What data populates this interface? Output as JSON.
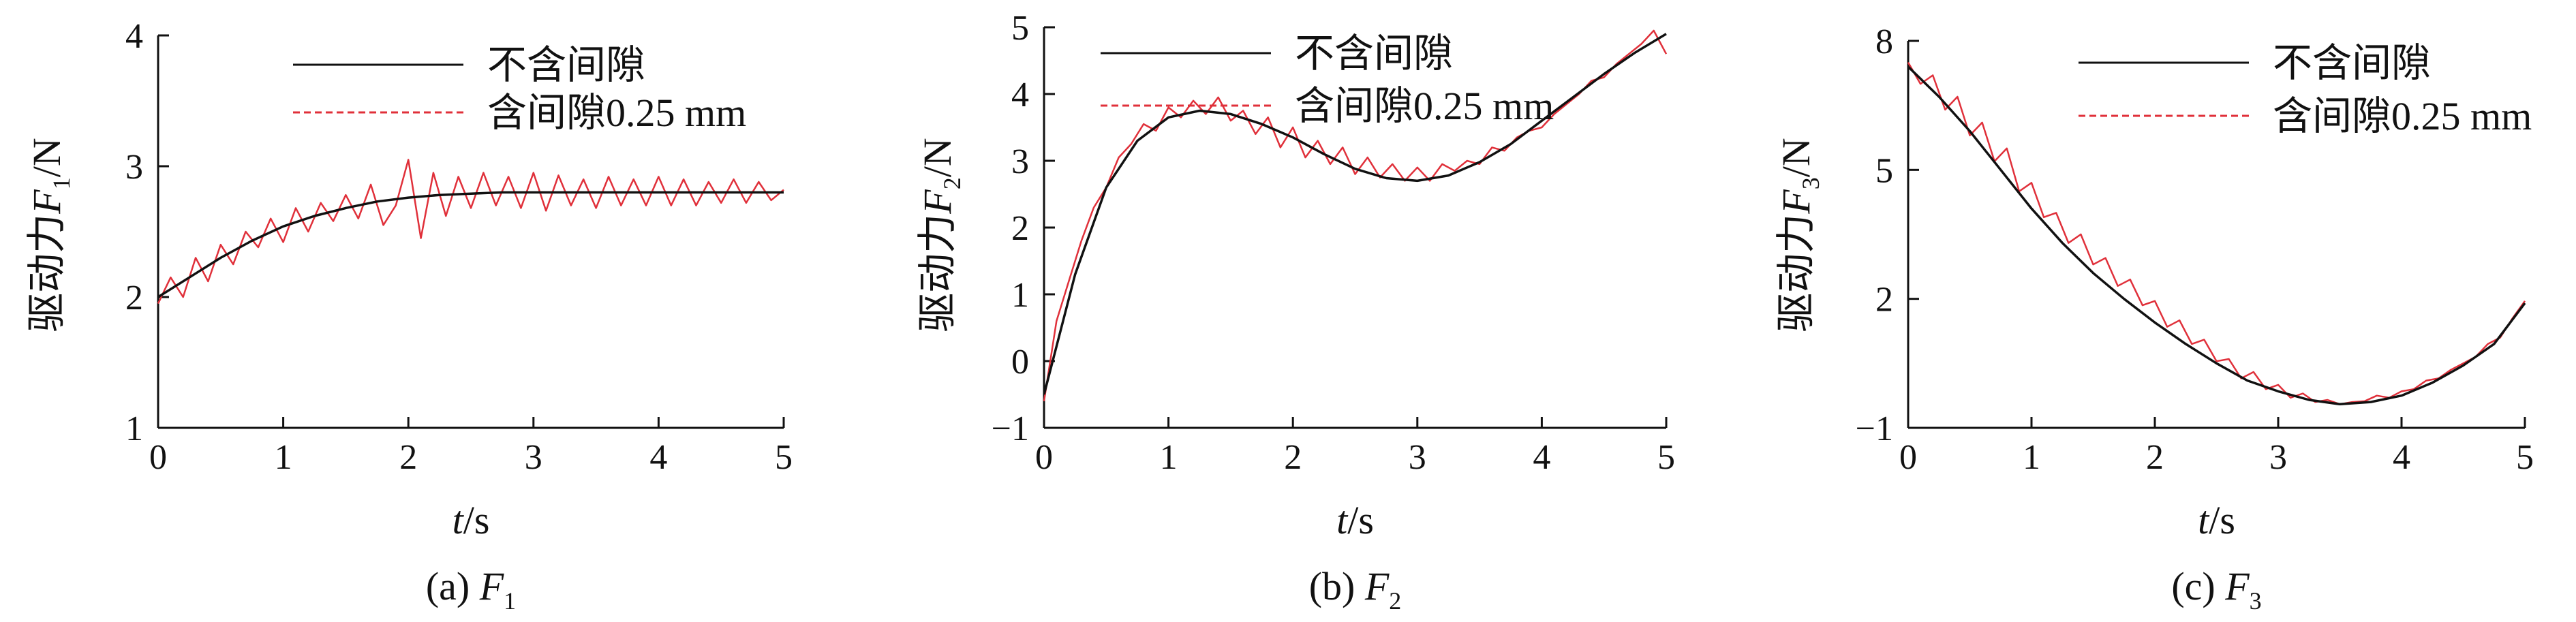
{
  "colors": {
    "no_clearance": "#111111",
    "clearance": "#e0303a",
    "axis": "#111111"
  },
  "legend": {
    "no_clearance_label": "不含间隙",
    "clearance_label": "含间隙0.25 mm"
  },
  "chart_data": [
    {
      "type": "line",
      "caption": {
        "prefix": "(a) ",
        "var": "F",
        "sub": "1"
      },
      "ylabel": {
        "prefix": "驱动力",
        "var": "F",
        "sub": "1",
        "suffix": "/N"
      },
      "xlabel": {
        "var": "t",
        "suffix": "/s"
      },
      "xlim": [
        0,
        5
      ],
      "ylim": [
        1,
        4
      ],
      "xticks": [
        "0",
        "1",
        "2",
        "3",
        "4",
        "5"
      ],
      "yticks": [
        "1",
        "2",
        "3",
        "4"
      ],
      "ytick_values": [
        1,
        2,
        3,
        4
      ],
      "series": [
        {
          "name": "不含间隙",
          "x": [
            0,
            0.25,
            0.5,
            0.75,
            1,
            1.25,
            1.5,
            1.75,
            2,
            2.25,
            2.5,
            2.75,
            3,
            3.25,
            3.5,
            3.75,
            4,
            4.25,
            4.5,
            4.75,
            5
          ],
          "y": [
            2.0,
            2.15,
            2.3,
            2.43,
            2.54,
            2.62,
            2.68,
            2.73,
            2.76,
            2.78,
            2.79,
            2.8,
            2.8,
            2.8,
            2.8,
            2.8,
            2.8,
            2.8,
            2.8,
            2.8,
            2.8
          ]
        },
        {
          "name": "含间隙0.25 mm",
          "x": [
            0,
            0.1,
            0.2,
            0.3,
            0.4,
            0.5,
            0.6,
            0.7,
            0.8,
            0.9,
            1.0,
            1.1,
            1.2,
            1.3,
            1.4,
            1.5,
            1.6,
            1.7,
            1.8,
            1.9,
            2.0,
            2.1,
            2.2,
            2.3,
            2.4,
            2.5,
            2.6,
            2.7,
            2.8,
            2.9,
            3.0,
            3.1,
            3.2,
            3.3,
            3.4,
            3.5,
            3.6,
            3.7,
            3.8,
            3.9,
            4.0,
            4.1,
            4.2,
            4.3,
            4.4,
            4.5,
            4.6,
            4.7,
            4.8,
            4.9,
            5.0
          ],
          "y": [
            1.95,
            2.15,
            2.0,
            2.3,
            2.12,
            2.4,
            2.25,
            2.5,
            2.38,
            2.6,
            2.42,
            2.68,
            2.5,
            2.72,
            2.58,
            2.78,
            2.6,
            2.86,
            2.55,
            2.7,
            3.05,
            2.45,
            2.95,
            2.62,
            2.92,
            2.68,
            2.95,
            2.7,
            2.92,
            2.68,
            2.95,
            2.66,
            2.93,
            2.7,
            2.9,
            2.68,
            2.92,
            2.7,
            2.9,
            2.7,
            2.92,
            2.7,
            2.9,
            2.7,
            2.88,
            2.72,
            2.9,
            2.72,
            2.88,
            2.74,
            2.82
          ]
        }
      ]
    },
    {
      "type": "line",
      "caption": {
        "prefix": "(b) ",
        "var": "F",
        "sub": "2"
      },
      "ylabel": {
        "prefix": "驱动力",
        "var": "F",
        "sub": "2",
        "suffix": "/N"
      },
      "xlabel": {
        "var": "t",
        "suffix": "/s"
      },
      "xlim": [
        0,
        5
      ],
      "ylim": [
        -1,
        5
      ],
      "xticks": [
        "0",
        "1",
        "2",
        "3",
        "4",
        "5"
      ],
      "yticks": [
        "−1",
        "0",
        "1",
        "2",
        "3",
        "4",
        "5"
      ],
      "ytick_values": [
        -1,
        0,
        1,
        2,
        3,
        4,
        5
      ],
      "series": [
        {
          "name": "不含间隙",
          "x": [
            0,
            0.25,
            0.5,
            0.75,
            1,
            1.25,
            1.5,
            1.75,
            2,
            2.25,
            2.5,
            2.75,
            3,
            3.25,
            3.5,
            3.75,
            4,
            4.25,
            4.5,
            4.75,
            5
          ],
          "y": [
            -0.5,
            1.3,
            2.6,
            3.3,
            3.65,
            3.75,
            3.7,
            3.55,
            3.35,
            3.1,
            2.88,
            2.74,
            2.7,
            2.78,
            2.98,
            3.25,
            3.6,
            3.95,
            4.3,
            4.62,
            4.9
          ]
        },
        {
          "name": "含间隙0.25 mm",
          "x": [
            0,
            0.1,
            0.2,
            0.3,
            0.4,
            0.5,
            0.6,
            0.7,
            0.8,
            0.9,
            1.0,
            1.1,
            1.2,
            1.3,
            1.4,
            1.5,
            1.6,
            1.7,
            1.8,
            1.9,
            2.0,
            2.1,
            2.2,
            2.3,
            2.4,
            2.5,
            2.6,
            2.7,
            2.8,
            2.9,
            3.0,
            3.1,
            3.2,
            3.3,
            3.4,
            3.5,
            3.6,
            3.7,
            3.8,
            3.9,
            4.0,
            4.1,
            4.2,
            4.3,
            4.4,
            4.5,
            4.6,
            4.7,
            4.8,
            4.9,
            5.0
          ],
          "y": [
            -0.6,
            0.6,
            1.2,
            1.8,
            2.3,
            2.6,
            3.05,
            3.25,
            3.55,
            3.45,
            3.8,
            3.65,
            3.9,
            3.7,
            3.95,
            3.6,
            3.75,
            3.4,
            3.65,
            3.2,
            3.5,
            3.05,
            3.3,
            2.95,
            3.2,
            2.8,
            3.05,
            2.75,
            2.95,
            2.7,
            2.9,
            2.7,
            2.95,
            2.85,
            3.0,
            2.95,
            3.2,
            3.15,
            3.35,
            3.45,
            3.5,
            3.7,
            3.85,
            4.0,
            4.2,
            4.25,
            4.45,
            4.6,
            4.75,
            4.95,
            4.6
          ]
        }
      ]
    },
    {
      "type": "line",
      "caption": {
        "prefix": "(c) ",
        "var": "F",
        "sub": "3"
      },
      "ylabel": {
        "prefix": "驱动力",
        "var": "F",
        "sub": "3",
        "suffix": "/N"
      },
      "xlabel": {
        "var": "t",
        "suffix": "/s"
      },
      "xlim": [
        0,
        5
      ],
      "ylim": [
        -1,
        8
      ],
      "xticks": [
        "0",
        "1",
        "2",
        "3",
        "4",
        "5"
      ],
      "yticks": [
        "−1",
        "2",
        "5",
        "8"
      ],
      "ytick_values": [
        -1,
        2,
        5,
        8
      ],
      "series": [
        {
          "name": "不含间隙",
          "x": [
            0,
            0.25,
            0.5,
            0.75,
            1,
            1.25,
            1.5,
            1.75,
            2,
            2.25,
            2.5,
            2.75,
            3,
            3.25,
            3.5,
            3.75,
            4,
            4.25,
            4.5,
            4.75,
            5
          ],
          "y": [
            7.4,
            6.7,
            5.9,
            5.0,
            4.1,
            3.3,
            2.6,
            2.0,
            1.45,
            0.95,
            0.5,
            0.1,
            -0.15,
            -0.35,
            -0.45,
            -0.4,
            -0.25,
            0.05,
            0.45,
            0.95,
            1.9
          ]
        },
        {
          "name": "含间隙0.25 mm",
          "x": [
            0,
            0.1,
            0.2,
            0.3,
            0.4,
            0.5,
            0.6,
            0.7,
            0.8,
            0.9,
            1.0,
            1.1,
            1.2,
            1.3,
            1.4,
            1.5,
            1.6,
            1.7,
            1.8,
            1.9,
            2.0,
            2.1,
            2.2,
            2.3,
            2.4,
            2.5,
            2.6,
            2.7,
            2.8,
            2.9,
            3.0,
            3.1,
            3.2,
            3.3,
            3.4,
            3.5,
            3.6,
            3.7,
            3.8,
            3.9,
            4.0,
            4.1,
            4.2,
            4.3,
            4.4,
            4.5,
            4.6,
            4.7,
            4.8,
            4.9,
            5.0
          ],
          "y": [
            7.5,
            7.0,
            7.2,
            6.4,
            6.7,
            5.8,
            6.1,
            5.2,
            5.5,
            4.5,
            4.7,
            3.9,
            4.0,
            3.3,
            3.5,
            2.8,
            2.95,
            2.3,
            2.45,
            1.85,
            1.95,
            1.35,
            1.5,
            0.95,
            1.05,
            0.55,
            0.6,
            0.15,
            0.3,
            -0.1,
            0.0,
            -0.3,
            -0.2,
            -0.4,
            -0.35,
            -0.45,
            -0.4,
            -0.38,
            -0.25,
            -0.3,
            -0.15,
            -0.1,
            0.1,
            0.15,
            0.35,
            0.5,
            0.65,
            0.95,
            1.1,
            1.55,
            1.95
          ]
        }
      ]
    }
  ]
}
